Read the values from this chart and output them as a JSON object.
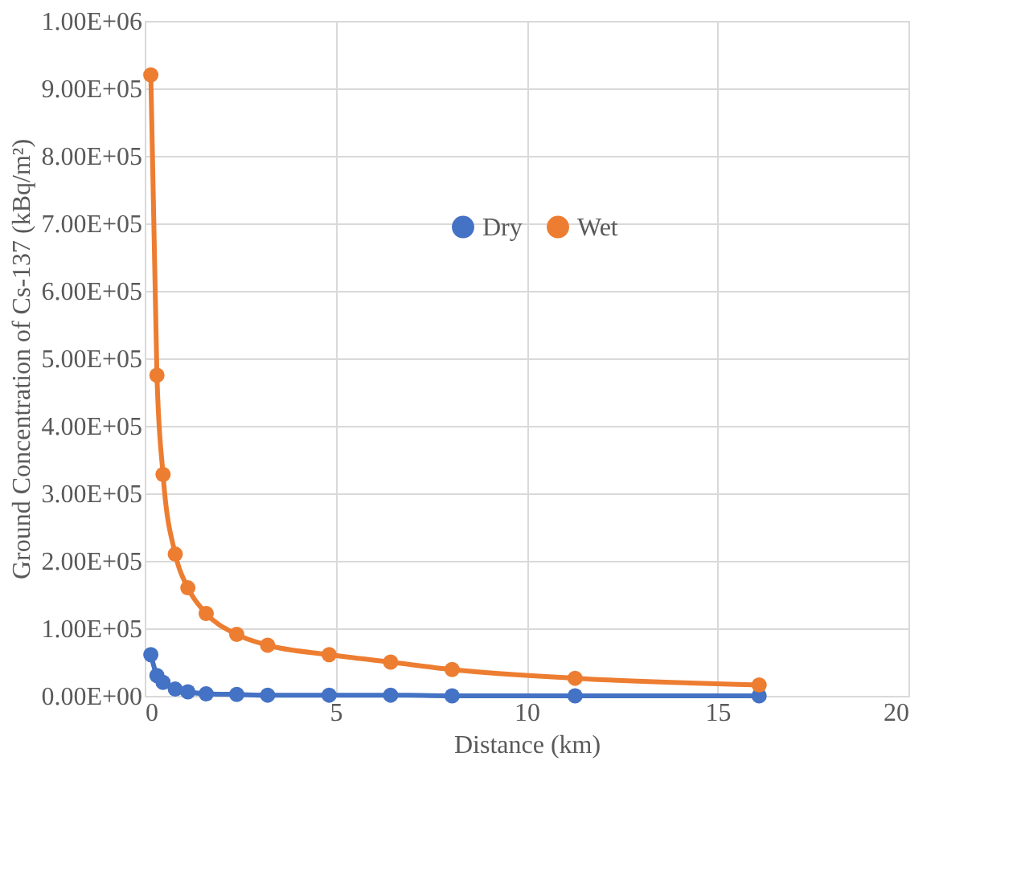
{
  "chart_data": {
    "type": "line",
    "xlabel": "Distance (km)",
    "ylabel": "Ground Concentration of Cs-137 (kBq/m²)",
    "x": [
      0.16,
      0.32,
      0.48,
      0.8,
      1.13,
      1.61,
      2.41,
      3.22,
      4.83,
      6.44,
      8.05,
      11.27,
      16.09
    ],
    "series": [
      {
        "name": "Dry",
        "color": "#4472c4",
        "values": [
          61000,
          30000,
          20000,
          10000,
          6000,
          3000,
          2000,
          1000,
          1000,
          1000,
          0,
          0,
          0
        ]
      },
      {
        "name": "Wet",
        "color": "#ed7d31",
        "values": [
          920000,
          475000,
          328000,
          210000,
          160000,
          122000,
          91000,
          75000,
          61000,
          50000,
          39000,
          26000,
          16000
        ]
      }
    ],
    "xlim": [
      0,
      20
    ],
    "xticks": [
      0,
      5,
      10,
      15,
      20
    ],
    "ylim": [
      0,
      1000000
    ],
    "yticks": [
      {
        "value": 0,
        "label": "0.00E+00"
      },
      {
        "value": 100000,
        "label": "1.00E+05"
      },
      {
        "value": 200000,
        "label": "2.00E+05"
      },
      {
        "value": 300000,
        "label": "3.00E+05"
      },
      {
        "value": 400000,
        "label": "4.00E+05"
      },
      {
        "value": 500000,
        "label": "5.00E+05"
      },
      {
        "value": 600000,
        "label": "6.00E+05"
      },
      {
        "value": 700000,
        "label": "7.00E+05"
      },
      {
        "value": 800000,
        "label": "8.00E+05"
      },
      {
        "value": 900000,
        "label": "9.00E+05"
      },
      {
        "value": 1000000,
        "label": "1.00E+06"
      }
    ],
    "grid": true,
    "legend": "right",
    "marker": "circle",
    "line_style": "solid"
  }
}
